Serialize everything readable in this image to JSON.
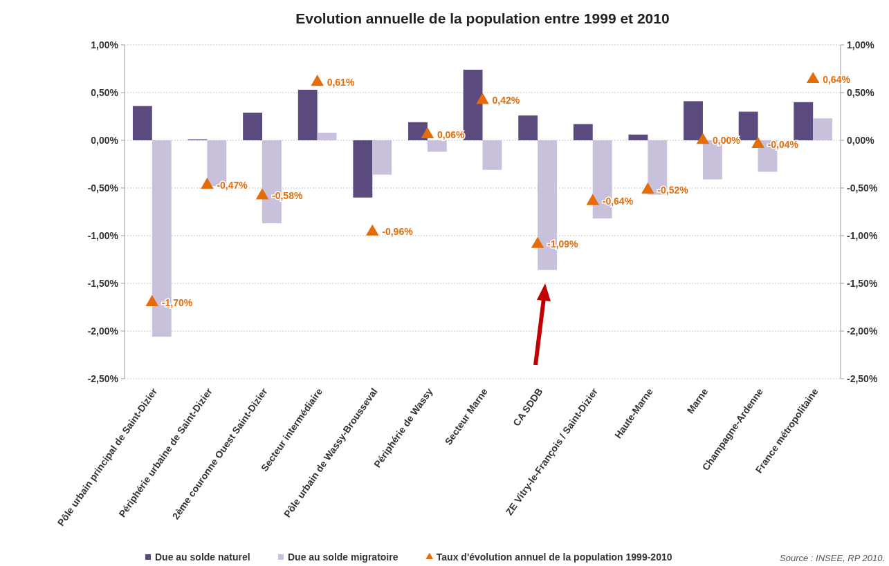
{
  "chart_data": {
    "type": "bar",
    "title": "Evolution annuelle de la population entre 1999 et 2010",
    "categories": [
      "Pôle urbain principal de Saint-Dizier",
      "Périphérie urbaine de Saint-Dizier",
      "2ème couronne Ouest Saint-Dizier",
      "Secteur intermédiaire",
      "Pôle urbain de Wassy-Brousseval",
      "Périphérie de Wassy",
      "Secteur Marne",
      "CA SDDB",
      "ZE Vitry-le-François / Saint-Dizier",
      "Haute-Marne",
      "Marne",
      "Champagne-Ardenne",
      "France métropolitaine"
    ],
    "series": [
      {
        "name": "Due au solde naturel",
        "color": "#5b4a7e",
        "values": [
          0.36,
          0.01,
          0.29,
          0.53,
          -0.6,
          0.19,
          0.74,
          0.26,
          0.17,
          0.06,
          0.41,
          0.3,
          0.4
        ]
      },
      {
        "name": "Due au solde migratoire",
        "type": "bar",
        "color": "#c9c1dc",
        "values": [
          -2.06,
          -0.48,
          -0.87,
          0.08,
          -0.36,
          -0.12,
          -0.31,
          -1.36,
          -0.82,
          -0.57,
          -0.41,
          -0.33,
          0.23
        ]
      },
      {
        "name": "Taux d'évolution annuel de la population 1999-2010",
        "type": "scatter",
        "marker": "triangle",
        "color": "#e46c0a",
        "values": [
          -1.7,
          -0.47,
          -0.58,
          0.61,
          -0.96,
          0.06,
          0.42,
          -1.09,
          -0.64,
          -0.52,
          0,
          -0.04,
          0.64
        ],
        "value_labels": [
          "-1,70%",
          "-0,47%",
          "-0,58%",
          "0,61%",
          "-0,96%",
          "0,06%",
          "0,42%",
          "-1,09%",
          "-0,64%",
          "-0,52%",
          "0,00%",
          "-0,04%",
          "0,64%"
        ]
      }
    ],
    "ylim": [
      -2.5,
      1
    ],
    "yticks": [
      {
        "value": 1,
        "label": "1,00%"
      },
      {
        "value": 0.5,
        "label": "0,50%"
      },
      {
        "value": 0,
        "label": "0,00%"
      },
      {
        "value": -0.5,
        "label": "-0,50%"
      },
      {
        "value": -1,
        "label": "-1,00%"
      },
      {
        "value": -1.5,
        "label": "-1,50%"
      },
      {
        "value": -2,
        "label": "-2,00%"
      },
      {
        "value": -2.5,
        "label": "-2,50%"
      }
    ],
    "y2lim": [
      -2.5,
      1
    ],
    "y2ticks": [
      {
        "value": 1,
        "label": "1,00%"
      },
      {
        "value": 0.5,
        "label": "0,50%"
      },
      {
        "value": 0,
        "label": "0,00%"
      },
      {
        "value": -0.5,
        "label": "-0,50%"
      },
      {
        "value": -1,
        "label": "-1,00%"
      },
      {
        "value": -1.5,
        "label": "-1,50%"
      },
      {
        "value": -2,
        "label": "-2,00%"
      },
      {
        "value": -2.5,
        "label": "-2,50%"
      }
    ],
    "grid": "y",
    "legend": "bottom",
    "annotations": [
      "Source : INSEE, RP 2010."
    ]
  }
}
